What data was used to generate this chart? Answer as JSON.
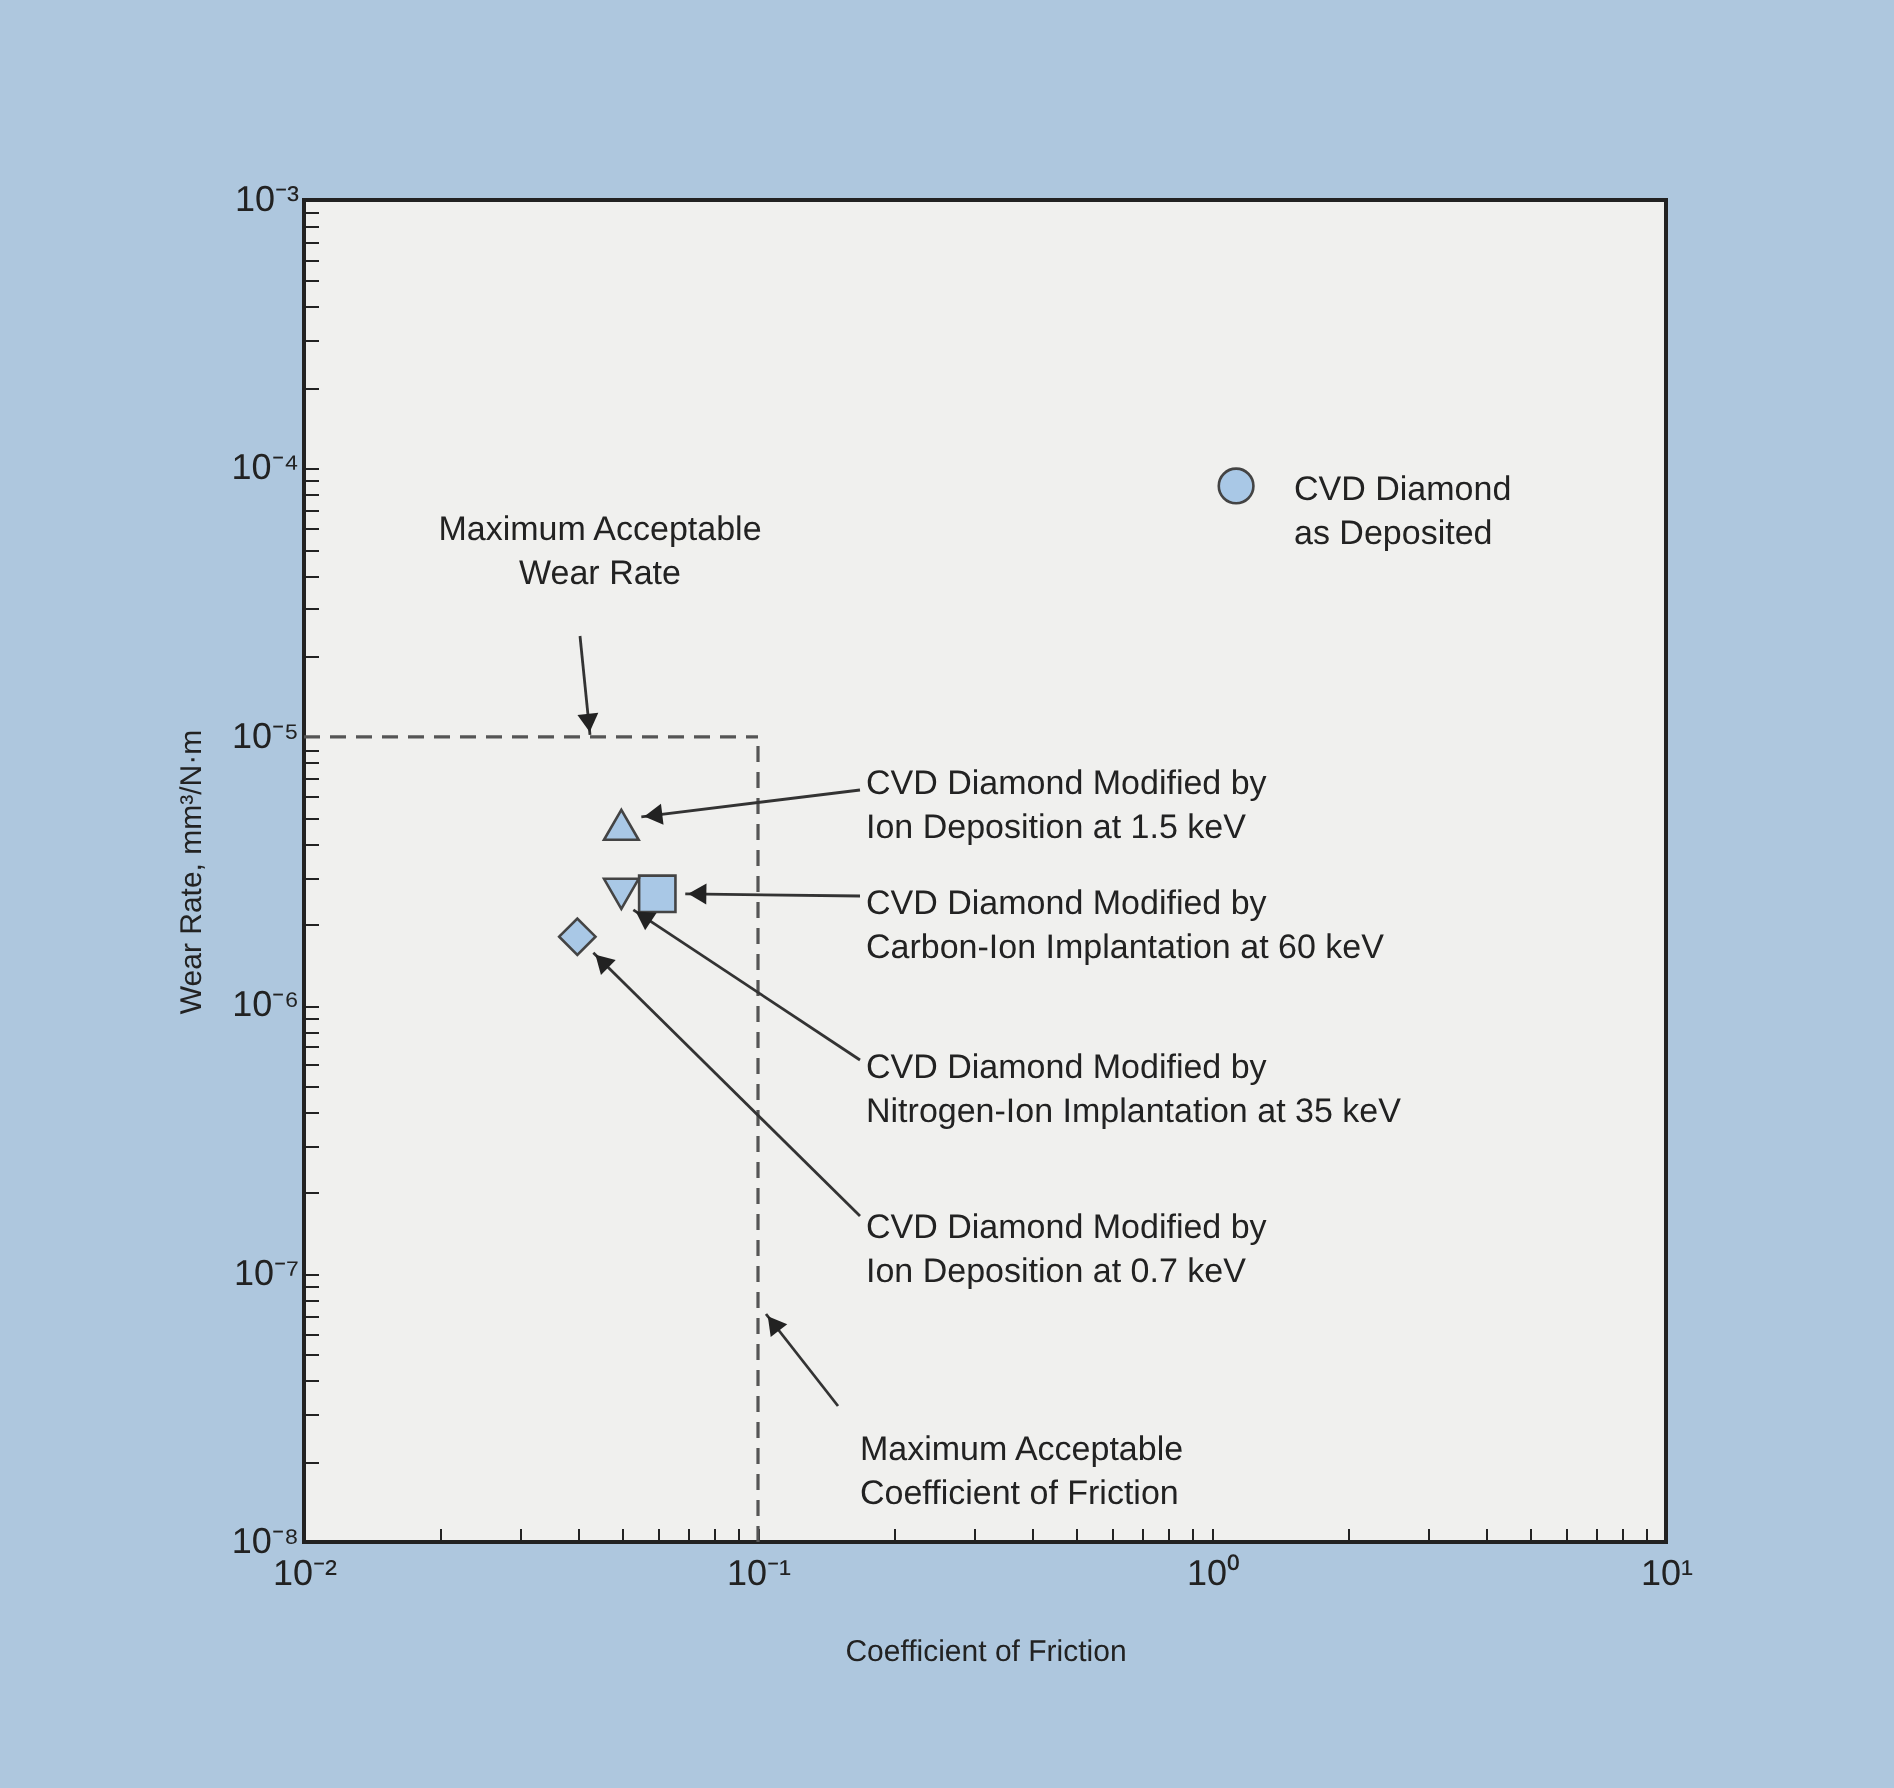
{
  "chart_data": {
    "type": "scatter",
    "xlabel": "Coefficient of Friction",
    "ylabel": "Wear Rate, mm³/N·m",
    "log": "xy",
    "grid": false,
    "xlim": [
      0.01,
      10
    ],
    "ylim": [
      1e-08,
      0.001
    ],
    "xticks": [
      {
        "value": 0.01,
        "label": "10⁻²"
      },
      {
        "value": 0.02,
        "label": null
      },
      {
        "value": 0.03,
        "label": null
      },
      {
        "value": 0.04,
        "label": null
      },
      {
        "value": 0.05,
        "label": null
      },
      {
        "value": 0.06,
        "label": null
      },
      {
        "value": 0.07,
        "label": null
      },
      {
        "value": 0.08,
        "label": null
      },
      {
        "value": 0.09,
        "label": null
      },
      {
        "value": 0.1,
        "label": "10⁻¹"
      },
      {
        "value": 0.2,
        "label": null
      },
      {
        "value": 0.3,
        "label": null
      },
      {
        "value": 0.4,
        "label": null
      },
      {
        "value": 0.5,
        "label": null
      },
      {
        "value": 0.6,
        "label": null
      },
      {
        "value": 0.7,
        "label": null
      },
      {
        "value": 0.8,
        "label": null
      },
      {
        "value": 0.9,
        "label": null
      },
      {
        "value": 1,
        "label": "10⁰"
      },
      {
        "value": 2,
        "label": null
      },
      {
        "value": 3,
        "label": null
      },
      {
        "value": 4,
        "label": null
      },
      {
        "value": 5,
        "label": null
      },
      {
        "value": 6,
        "label": null
      },
      {
        "value": 7,
        "label": null
      },
      {
        "value": 8,
        "label": null
      },
      {
        "value": 9,
        "label": null
      },
      {
        "value": 10,
        "label": "10¹"
      }
    ],
    "yticks": [
      {
        "value": 1e-08,
        "label": "10⁻⁸"
      },
      {
        "value": 2e-08,
        "label": null
      },
      {
        "value": 3e-08,
        "label": null
      },
      {
        "value": 4e-08,
        "label": null
      },
      {
        "value": 5e-08,
        "label": null
      },
      {
        "value": 6e-08,
        "label": null
      },
      {
        "value": 7e-08,
        "label": null
      },
      {
        "value": 8e-08,
        "label": null
      },
      {
        "value": 9e-08,
        "label": null
      },
      {
        "value": 1e-07,
        "label": "10⁻⁷"
      },
      {
        "value": 2e-07,
        "label": null
      },
      {
        "value": 3e-07,
        "label": null
      },
      {
        "value": 4e-07,
        "label": null
      },
      {
        "value": 5e-07,
        "label": null
      },
      {
        "value": 6e-07,
        "label": null
      },
      {
        "value": 7e-07,
        "label": null
      },
      {
        "value": 8e-07,
        "label": null
      },
      {
        "value": 9e-07,
        "label": null
      },
      {
        "value": 1e-06,
        "label": "10⁻⁶"
      },
      {
        "value": 2e-06,
        "label": null
      },
      {
        "value": 3e-06,
        "label": null
      },
      {
        "value": 4e-06,
        "label": null
      },
      {
        "value": 5e-06,
        "label": null
      },
      {
        "value": 6e-06,
        "label": null
      },
      {
        "value": 7e-06,
        "label": null
      },
      {
        "value": 8e-06,
        "label": null
      },
      {
        "value": 9e-06,
        "label": null
      },
      {
        "value": 1e-05,
        "label": "10⁻⁵"
      },
      {
        "value": 2e-05,
        "label": null
      },
      {
        "value": 3e-05,
        "label": null
      },
      {
        "value": 4e-05,
        "label": null
      },
      {
        "value": 5e-05,
        "label": null
      },
      {
        "value": 6e-05,
        "label": null
      },
      {
        "value": 7e-05,
        "label": null
      },
      {
        "value": 8e-05,
        "label": null
      },
      {
        "value": 9e-05,
        "label": null
      },
      {
        "value": 0.0001,
        "label": "10⁻⁴"
      },
      {
        "value": 0.0002,
        "label": null
      },
      {
        "value": 0.0003,
        "label": null
      },
      {
        "value": 0.0004,
        "label": null
      },
      {
        "value": 0.0005,
        "label": null
      },
      {
        "value": 0.0006,
        "label": null
      },
      {
        "value": 0.0007,
        "label": null
      },
      {
        "value": 0.0008,
        "label": null
      },
      {
        "value": 0.0009,
        "label": null
      },
      {
        "value": 0.001,
        "label": "10⁻³"
      }
    ],
    "series": [
      {
        "name": "CVD Diamond\nas Deposited",
        "color": "#a9c8e6",
        "marker": "circle",
        "x": [
          1.13
        ],
        "values": [
          8.6e-05
        ]
      },
      {
        "name": "CVD Diamond Modified by\nIon Deposition at 1.5 keV",
        "color": "#a9c8e6",
        "marker": "triangle",
        "x": [
          0.05
        ],
        "values": [
          4.7e-06
        ]
      },
      {
        "name": "CVD Diamond Modified by\nCarbon-Ion Implantation at 60 keV",
        "color": "#a9c8e6",
        "marker": "square",
        "x": [
          0.06
        ],
        "values": [
          2.6e-06
        ]
      },
      {
        "name": "CVD Diamond Modified by\nNitrogen-Ion Implantation at 35 keV",
        "color": "#a9c8e6",
        "marker": "triangle-down",
        "x": [
          0.05
        ],
        "values": [
          2.6e-06
        ]
      },
      {
        "name": "CVD Diamond Modified by\nIon Deposition at 0.7 keV",
        "color": "#a9c8e6",
        "marker": "diamond",
        "x": [
          0.04
        ],
        "values": [
          1.8e-06
        ]
      }
    ],
    "ref_lines": [
      {
        "axis": "y",
        "value": 1e-05,
        "label": "Maximum Acceptable\nWear Rate",
        "line_style": "dashed",
        "color": "#555555"
      },
      {
        "axis": "x",
        "value": 0.1,
        "label": "Maximum Acceptable\nCoefficient of Friction",
        "line_style": "dashed",
        "color": "#555555"
      }
    ]
  }
}
